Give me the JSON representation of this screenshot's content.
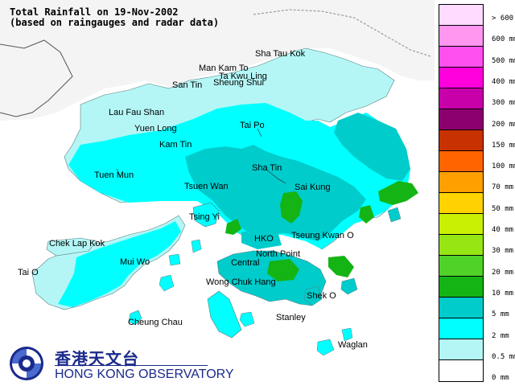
{
  "title": {
    "line1": "Total Rainfall on 19-Nov-2002",
    "line2": "(based on raingauges and radar data)"
  },
  "colors": {
    "background": "#ffffff",
    "mainland": "#f4f4f4",
    "boundary": "#8a8a8a",
    "band_0": "#ffffff",
    "band_0_5": "#b4f6f6",
    "band_2": "#00ffff",
    "band_5": "#00cccc",
    "band_10": "#14b414",
    "band_20": "#50d228",
    "band_30": "#96e614",
    "band_40": "#c8f000",
    "band_50": "#ffd200",
    "band_70": "#ffa000",
    "band_100": "#ff6400",
    "band_150": "#c83200",
    "band_200": "#8c006e",
    "band_300": "#c800aa",
    "band_400": "#ff00dc",
    "band_500": "#ff50ee",
    "band_600": "#ff96f0",
    "band_600_plus": "#ffdcff"
  },
  "legend": [
    {
      "label": "> 600 mm",
      "color": "#ffdcff"
    },
    {
      "label": "600 mm",
      "color": "#ff96f0"
    },
    {
      "label": "500 mm",
      "color": "#ff50ee"
    },
    {
      "label": "400 mm",
      "color": "#ff00dc"
    },
    {
      "label": "300 mm",
      "color": "#c800aa"
    },
    {
      "label": "200 mm",
      "color": "#8c006e"
    },
    {
      "label": "150 mm",
      "color": "#c83200"
    },
    {
      "label": "100 mm",
      "color": "#ff6400"
    },
    {
      "label": "70 mm",
      "color": "#ffa000"
    },
    {
      "label": "50 mm",
      "color": "#ffd200"
    },
    {
      "label": "40 mm",
      "color": "#c8f000"
    },
    {
      "label": "30 mm",
      "color": "#96e614"
    },
    {
      "label": "20 mm",
      "color": "#50d228"
    },
    {
      "label": "10 mm",
      "color": "#14b414"
    },
    {
      "label": "5 mm",
      "color": "#00cccc"
    },
    {
      "label": "2 mm",
      "color": "#00ffff"
    },
    {
      "label": "0.5 mm",
      "color": "#b4f6f6"
    },
    {
      "label": "0 mm",
      "color": "#ffffff"
    }
  ],
  "places": {
    "sha_tau_kok": "Sha Tau Kok",
    "man_kam_to": "Man Kam To",
    "ta_kwu_ling": "Ta Kwu Ling",
    "san_tin": "San Tin",
    "sheung_shui": "Sheung Shui",
    "lau_fau_shan": "Lau Fau Shan",
    "yuen_long": "Yuen Long",
    "tai_po": "Tai Po",
    "kam_tin": "Kam Tin",
    "tuen_mun": "Tuen Mun",
    "sha_tin": "Sha Tin",
    "tsuen_wan": "Tsuen Wan",
    "sai_kung": "Sai Kung",
    "tsing_yi": "Tsing Yi",
    "chek_lap_kok": "Chek Lap Kok",
    "hko": "HKO",
    "tseung_kwan_o": "Tseung Kwan O",
    "mui_wo": "Mui Wo",
    "north_point": "North Point",
    "central": "Central",
    "tai_o": "Tai O",
    "wong_chuk_hang": "Wong Chuk Hang",
    "shek_o": "Shek O",
    "stanley": "Stanley",
    "cheung_chau": "Cheung Chau",
    "waglan": "Waglan"
  },
  "logo": {
    "chinese": "香港天文台",
    "english": "HONG KONG OBSERVATORY",
    "colour": "#1a2a8a"
  }
}
